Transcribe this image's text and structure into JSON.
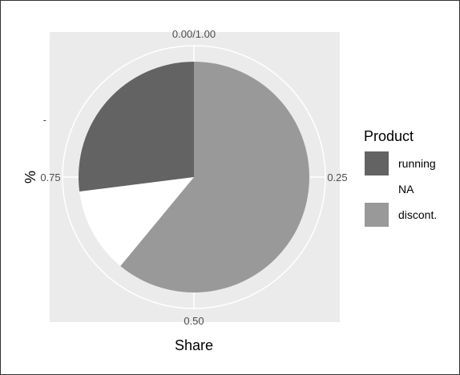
{
  "chart_data": {
    "type": "pie",
    "title": "",
    "xlabel": "Share",
    "ylabel": "%",
    "y_tick_label": "-",
    "angle_ticks": [
      {
        "value": 0.0,
        "label": "0.00/1.00"
      },
      {
        "value": 0.25,
        "label": "0.25"
      },
      {
        "value": 0.5,
        "label": "0.50"
      },
      {
        "value": 0.75,
        "label": "0.75"
      }
    ],
    "slices": [
      {
        "label": "discont.",
        "value": 0.61,
        "color": "#999999"
      },
      {
        "label": "NA",
        "value": 0.12,
        "color": "#ffffff"
      },
      {
        "label": "running",
        "value": 0.27,
        "color": "#636363"
      }
    ],
    "legend": {
      "title": "Product",
      "position": "right",
      "items": [
        {
          "label": "running",
          "color": "#636363"
        },
        {
          "label": "NA",
          "color": "#ffffff"
        },
        {
          "label": "discont.",
          "color": "#999999"
        }
      ]
    },
    "panel_background": "#ebebeb",
    "grid": true
  }
}
